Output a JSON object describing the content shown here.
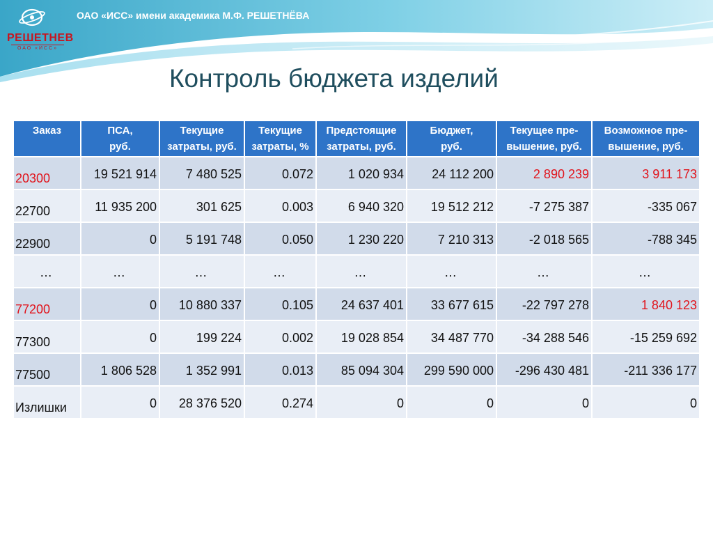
{
  "header": {
    "company": "ОАО «ИСС» имени академика М.Ф. РЕШЕТНЁВА",
    "logo_name": "РЕШЕТНЕВ",
    "logo_sub": "ОАО «ИСС»"
  },
  "title": "Контроль бюджета изделий",
  "table": {
    "columns": [
      {
        "line1": "Заказ",
        "line2": ""
      },
      {
        "line1": "ПСА,",
        "line2": "руб."
      },
      {
        "line1": "Текущие",
        "line2": "затраты, руб."
      },
      {
        "line1": "Текущие",
        "line2": "затраты, %"
      },
      {
        "line1": "Предстоящие",
        "line2": "затраты, руб."
      },
      {
        "line1": "Бюджет,",
        "line2": "руб."
      },
      {
        "line1": "Текущее пре-",
        "line2": "вышение, руб."
      },
      {
        "line1": "Возможное пре-",
        "line2": "вышение, руб."
      }
    ],
    "rows": [
      [
        "20300",
        "19 521 914",
        "7 480 525",
        "0.072",
        "1 020 934",
        "24 112 200",
        "2 890 239",
        "3 911 173"
      ],
      [
        "22700",
        "11 935 200",
        "301 625",
        "0.003",
        "6 940 320",
        "19 512 212",
        "-7 275 387",
        "-335 067"
      ],
      [
        "22900",
        "0",
        "5 191 748",
        "0.050",
        "1 230 220",
        "7 210 313",
        "-2 018 565",
        "-788 345"
      ],
      [
        "…",
        "…",
        "…",
        "…",
        "…",
        "…",
        "…",
        "…"
      ],
      [
        "77200",
        "0",
        "10 880 337",
        "0.105",
        "24 637 401",
        "33 677 615",
        "-22 797 278",
        "1 840 123"
      ],
      [
        "77300",
        "0",
        "199 224",
        "0.002",
        "19 028 854",
        "34 487 770",
        "-34 288 546",
        "-15 259 692"
      ],
      [
        "77500",
        "1 806 528",
        "1 352 991",
        "0.013",
        "85 094 304",
        "299 590 000",
        "-296 430 481",
        "-211 336 177"
      ],
      [
        "Излишки",
        "0",
        "28 376 520",
        "0.274",
        "0",
        "0",
        "0",
        "0"
      ]
    ]
  },
  "colors": {
    "header_bg": "#2e74c8",
    "row_dark": "#d1dbea",
    "row_light": "#e9eef6",
    "overrun_red": "#e1141c",
    "title": "#1f4e5e"
  }
}
